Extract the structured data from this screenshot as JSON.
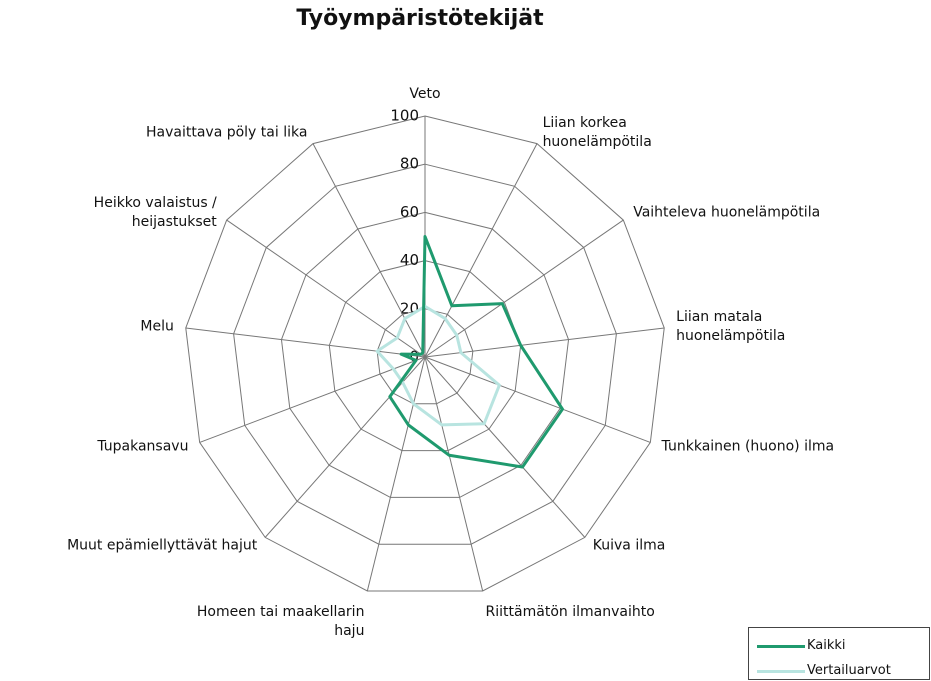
{
  "chart_data": {
    "type": "radar",
    "title": "Työympäristötekijät",
    "categories": [
      "Veto",
      "Liian korkea\nhuonelämpötila",
      "Vaihteleva huonelämpötila",
      "Liian matala\nhuonelämpötila",
      "Tunkkainen (huono) ilma",
      "Kuiva ilma",
      "Riittämätön ilmanvaihto",
      "Homeen tai maakellarin\nhaju",
      "Muut epämiellyttävät hajut",
      "Tupakansavu",
      "Melu",
      "Heikko valaistus /\nheijastukset",
      "Havaittava pöly tai lika"
    ],
    "series": [
      {
        "name": "Kaikki",
        "color": "#1f9a6e",
        "values": [
          50,
          24,
          39,
          40,
          61,
          61,
          42,
          29,
          22,
          4,
          10,
          2,
          2
        ]
      },
      {
        "name": "Vertailuarvot",
        "color": "#b8e4e0",
        "values": [
          21,
          18,
          16,
          15,
          33,
          37,
          29,
          20,
          14,
          14,
          20,
          14,
          18
        ]
      }
    ],
    "ylim": [
      0,
      100
    ],
    "yticks": [
      0,
      20,
      40,
      60,
      80,
      100
    ],
    "grid": true,
    "legend": "bottom-right"
  }
}
